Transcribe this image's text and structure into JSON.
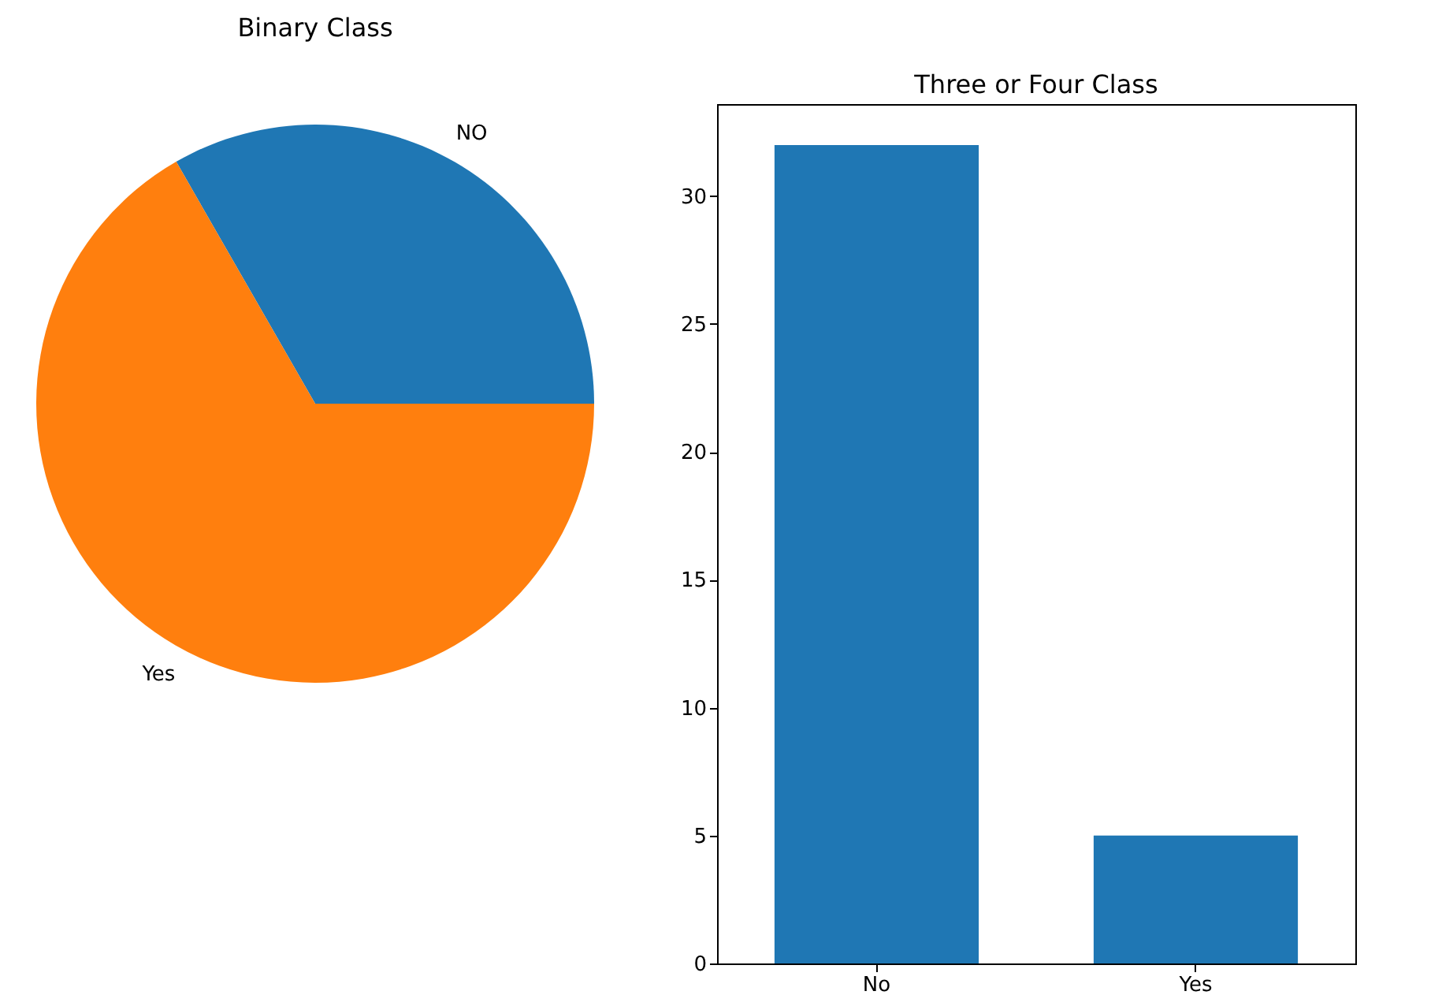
{
  "chart_data": [
    {
      "type": "pie",
      "title": "Binary Class",
      "categories": [
        "NO",
        "Yes"
      ],
      "values": [
        33.3,
        66.7
      ],
      "colors": [
        "#1f77b4",
        "#ff7f0e"
      ]
    },
    {
      "type": "bar",
      "title": "Three or Four Class",
      "categories": [
        "No",
        "Yes"
      ],
      "values": [
        32,
        5
      ],
      "color": "#1f77b4",
      "ylim": [
        0,
        33.6
      ],
      "yticks": [
        0,
        5,
        10,
        15,
        20,
        25,
        30
      ]
    }
  ]
}
